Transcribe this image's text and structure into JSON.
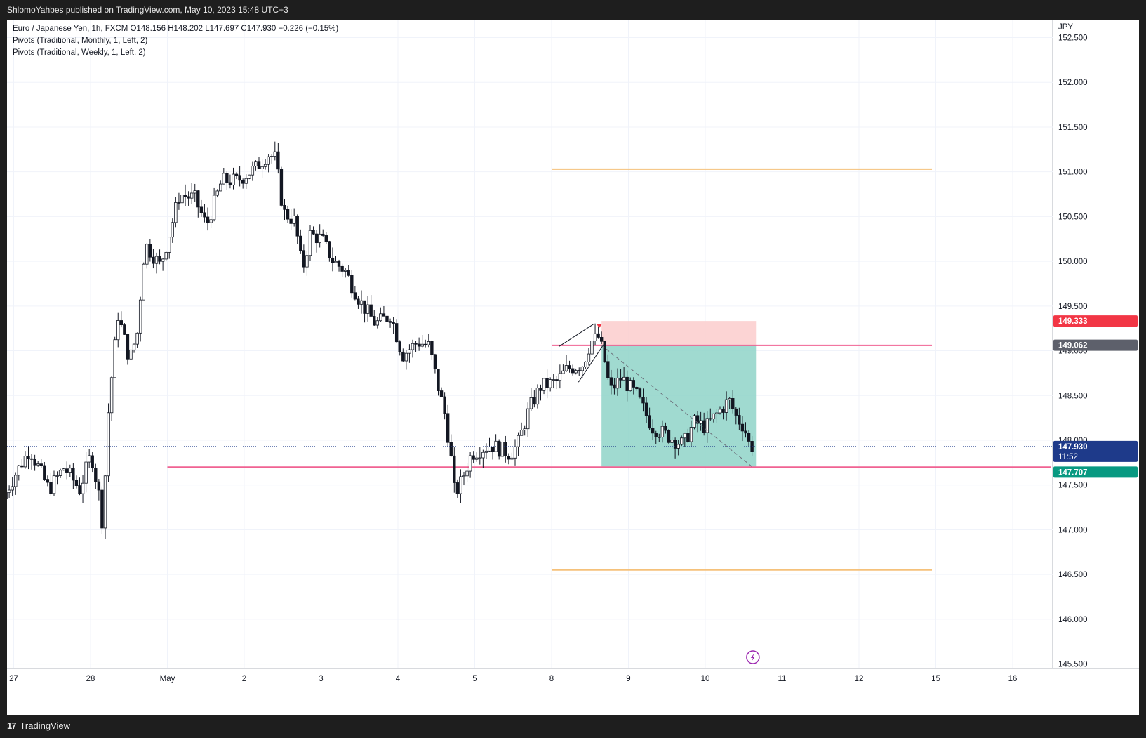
{
  "header": {
    "published": "ShlomoYahbes published on TradingView.com, May 10, 2023 15:48 UTC+3"
  },
  "footer": {
    "brand": "TradingView",
    "logo_icon": "tradingview-logo-icon"
  },
  "legend": {
    "symbol_line": "Euro / Japanese Yen, 1h, FXCM  O148.156  H148.202  L147.697  C147.930  −0.226 (−0.15%)",
    "indicator_1": "Pivots (Traditional, Monthly, 1, Left, 2)",
    "indicator_2": "Pivots (Traditional, Weekly, 1, Left, 2)"
  },
  "colors": {
    "candle": "#131722",
    "pivot_orange": "#f5c17a",
    "pivot_pink": "#f06292",
    "profit_zone": "#8fd3c8",
    "stop_zone": "#fbcdcd",
    "price_current": "#1e3a8a",
    "price_stop": "#f23645",
    "price_entry": "#5d606b",
    "price_target": "#089981",
    "lightning": "#9c27b0"
  },
  "chart_data": {
    "type": "candlestick",
    "symbol": "Euro / Japanese Yen",
    "interval": "1h",
    "exchange": "FXCM",
    "ohlc": {
      "open": 148.156,
      "high": 148.202,
      "low": 147.697,
      "close": 147.93,
      "change": -0.226,
      "change_pct": -0.15
    },
    "currency_label": "JPY",
    "ylim": [
      145.5,
      152.5
    ],
    "y_ticks": [
      "152.500",
      "152.000",
      "151.500",
      "151.000",
      "150.500",
      "150.000",
      "149.500",
      "149.000",
      "148.500",
      "148.000",
      "147.500",
      "147.000",
      "146.500",
      "146.000",
      "145.500"
    ],
    "x_ticks": [
      {
        "label": "27",
        "day": -3
      },
      {
        "label": "28",
        "day": -2
      },
      {
        "label": "May",
        "day": -1
      },
      {
        "label": "2",
        "day": 0
      },
      {
        "label": "3",
        "day": 1
      },
      {
        "label": "4",
        "day": 2
      },
      {
        "label": "5",
        "day": 3
      },
      {
        "label": "8",
        "day": 4
      },
      {
        "label": "9",
        "day": 5
      },
      {
        "label": "10",
        "day": 6
      },
      {
        "label": "11",
        "day": 7
      },
      {
        "label": "12",
        "day": 8
      },
      {
        "label": "15",
        "day": 9
      },
      {
        "label": "16",
        "day": 10
      }
    ],
    "trading_day_start": -3.1,
    "trading_day_end": 6.62,
    "price_path": [
      [
        -3.1,
        147.35
      ],
      [
        -2.95,
        147.6
      ],
      [
        -2.75,
        147.9
      ],
      [
        -2.5,
        147.45
      ],
      [
        -2.3,
        147.7
      ],
      [
        -2.1,
        147.45
      ],
      [
        -1.95,
        147.85
      ],
      [
        -1.85,
        147.4
      ],
      [
        -1.8,
        147.05
      ],
      [
        -1.72,
        148.4
      ],
      [
        -1.6,
        149.4
      ],
      [
        -1.45,
        148.9
      ],
      [
        -1.35,
        149.2
      ],
      [
        -1.25,
        150.2
      ],
      [
        -1.05,
        149.95
      ],
      [
        -0.95,
        150.25
      ],
      [
        -0.8,
        150.75
      ],
      [
        -0.6,
        150.7
      ],
      [
        -0.45,
        150.4
      ],
      [
        -0.25,
        150.9
      ],
      [
        -0.05,
        150.9
      ],
      [
        0.2,
        151.05
      ],
      [
        0.35,
        151.2
      ],
      [
        0.45,
        151.15
      ],
      [
        0.55,
        150.55
      ],
      [
        0.7,
        150.45
      ],
      [
        0.8,
        149.9
      ],
      [
        0.9,
        150.3
      ],
      [
        1.05,
        150.25
      ],
      [
        1.2,
        150.0
      ],
      [
        1.35,
        149.9
      ],
      [
        1.55,
        149.55
      ],
      [
        1.75,
        149.3
      ],
      [
        1.95,
        149.4
      ],
      [
        2.1,
        148.95
      ],
      [
        2.3,
        149.1
      ],
      [
        2.45,
        149.05
      ],
      [
        2.55,
        148.65
      ],
      [
        2.65,
        148.3
      ],
      [
        2.72,
        147.9
      ],
      [
        2.78,
        147.4
      ],
      [
        2.85,
        147.5
      ],
      [
        3.0,
        147.85
      ],
      [
        3.25,
        147.95
      ],
      [
        3.5,
        147.85
      ],
      [
        3.6,
        147.95
      ],
      [
        3.75,
        148.35
      ],
      [
        3.9,
        148.6
      ],
      [
        4.1,
        148.65
      ],
      [
        4.25,
        148.8
      ],
      [
        4.45,
        148.85
      ],
      [
        4.55,
        149.1
      ],
      [
        4.65,
        149.15
      ],
      [
        4.72,
        148.95
      ],
      [
        4.8,
        148.55
      ],
      [
        4.95,
        148.7
      ],
      [
        5.15,
        148.5
      ],
      [
        5.35,
        148.15
      ],
      [
        5.55,
        148.05
      ],
      [
        5.75,
        147.95
      ],
      [
        5.9,
        148.2
      ],
      [
        6.05,
        148.15
      ],
      [
        6.2,
        148.3
      ],
      [
        6.35,
        148.45
      ],
      [
        6.45,
        148.25
      ],
      [
        6.55,
        148.15
      ],
      [
        6.62,
        147.93
      ]
    ],
    "rising_wedge": {
      "upper": [
        [
          4.1,
          149.05
        ],
        [
          4.55,
          149.3
        ]
      ],
      "lower": [
        [
          4.35,
          148.65
        ],
        [
          4.7,
          149.1
        ]
      ]
    },
    "position": {
      "type": "short",
      "entry": 149.062,
      "stop": 149.333,
      "target": 147.707,
      "start_day": 4.65,
      "end_day": 6.66,
      "signal_arrow_day": 4.62
    },
    "horizontal_lines": [
      {
        "type": "pivot-weekly",
        "value": 151.03,
        "from_day": 4.0,
        "to_day": 8.95,
        "color": "orange"
      },
      {
        "type": "pivot-weekly",
        "value": 146.55,
        "from_day": 4.0,
        "to_day": 8.95,
        "color": "orange"
      },
      {
        "type": "pivot-monthly",
        "value": 149.06,
        "from_day": 4.0,
        "to_day": 8.95,
        "color": "pink"
      },
      {
        "type": "pivot-monthly",
        "value": 147.7,
        "from_day": -1.0,
        "to_day": 10.5,
        "color": "pink"
      }
    ],
    "last_price": 147.93,
    "price_labels": {
      "stop": "149.333",
      "entry": "149.062",
      "current": "147.930",
      "countdown": "11:52",
      "target": "147.707"
    }
  }
}
